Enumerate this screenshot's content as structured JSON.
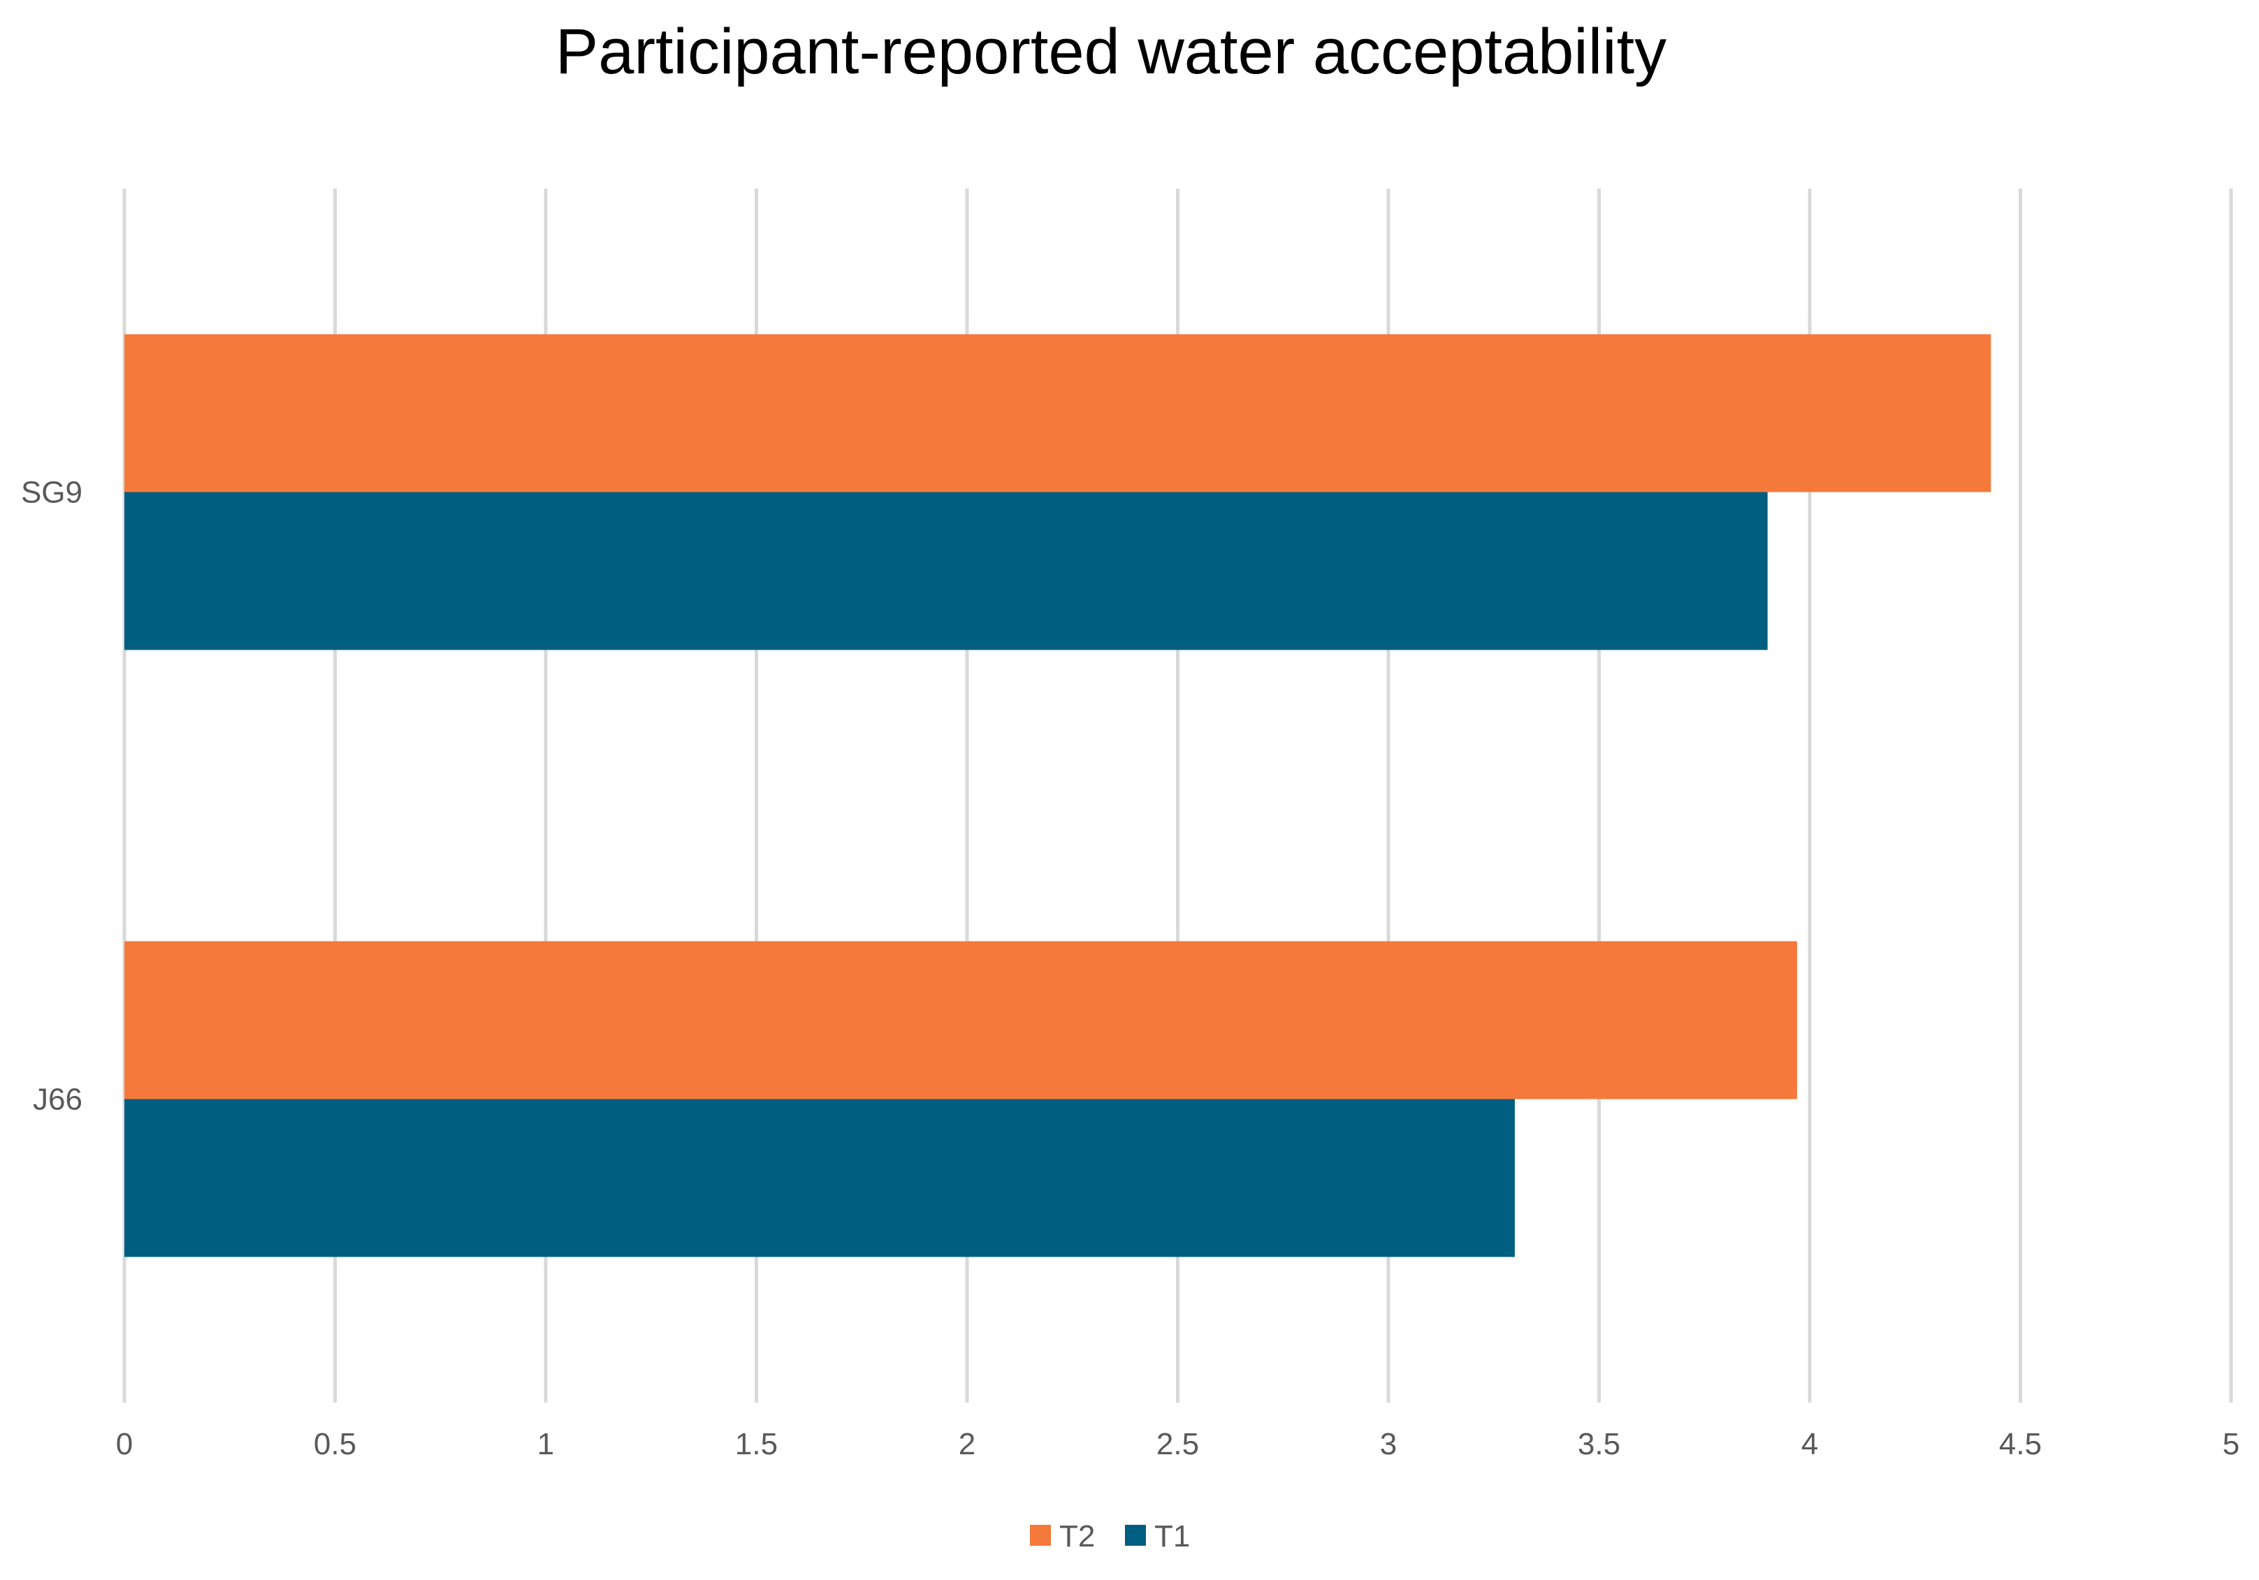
{
  "chart_data": {
    "type": "bar",
    "orientation": "horizontal",
    "title": "Participant-reported water acceptability",
    "xlabel": "",
    "ylabel": "",
    "categories": [
      "SG9",
      "J66"
    ],
    "series": [
      {
        "name": "T2",
        "color": "#F4793B",
        "values": [
          4.43,
          3.97
        ]
      },
      {
        "name": "T1",
        "color": "#005F80",
        "values": [
          3.9,
          3.3
        ]
      }
    ],
    "xlim": [
      0,
      5
    ],
    "xticks": [
      0,
      0.5,
      1,
      1.5,
      2,
      2.5,
      3,
      3.5,
      4,
      4.5,
      5
    ],
    "xtick_labels": [
      "0",
      "0.5",
      "1",
      "1.5",
      "2",
      "2.5",
      "3",
      "3.5",
      "4",
      "4.5",
      "5"
    ],
    "grid": "vertical",
    "legend": {
      "position": "bottom-center",
      "order": [
        "T2",
        "T1"
      ]
    }
  }
}
